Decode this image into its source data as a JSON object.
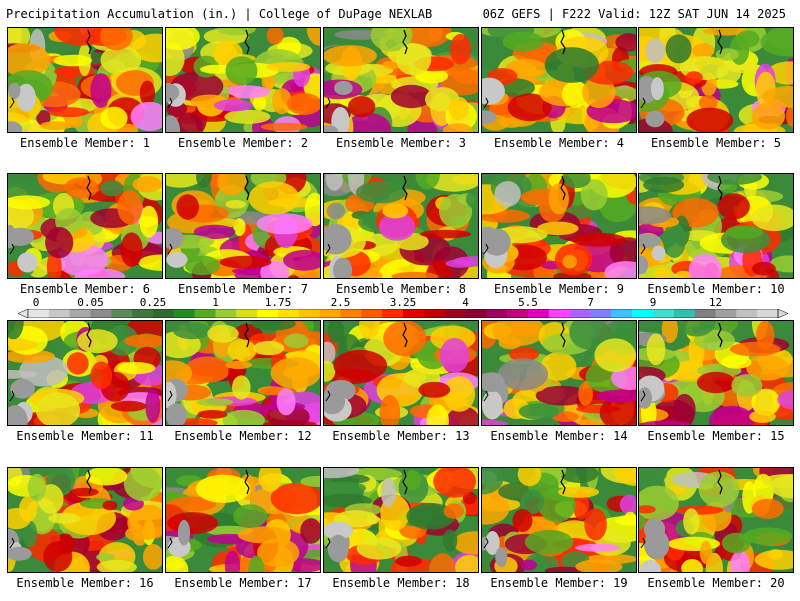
{
  "header": {
    "title_left": "Precipitation Accumulation (in.) | College of DuPage NEXLAB",
    "title_right": "06Z GEFS | F222 Valid: 12Z SAT JUN 14 2025"
  },
  "colorbar": {
    "tick_labels": [
      "0",
      "0.05",
      "0.25",
      "1",
      "1.75",
      "2.5",
      "3.25",
      "4",
      "5.5",
      "7",
      "9",
      "12"
    ],
    "colors": [
      "#e6e6e6",
      "#c8c8c8",
      "#a8a8a8",
      "#8c8c8c",
      "#5a8a5a",
      "#3c783c",
      "#2e6b2e",
      "#228b22",
      "#55aa22",
      "#9acd32",
      "#d8e01e",
      "#ffff00",
      "#ffe000",
      "#ffc200",
      "#ffa500",
      "#ff8000",
      "#ff5a00",
      "#ff2a00",
      "#e00000",
      "#c00000",
      "#a00020",
      "#8b0030",
      "#a00060",
      "#c00080",
      "#e000c0",
      "#ff40ff",
      "#b060ff",
      "#8080ff",
      "#40c0ff",
      "#00ffff",
      "#40e0d0",
      "#30c0b0",
      "#808080",
      "#a0a0a0",
      "#c0c0c0",
      "#d8d8d8"
    ]
  },
  "members": [
    {
      "label": "Ensemble Member: 1",
      "wet": 0.55,
      "seed": 11
    },
    {
      "label": "Ensemble Member: 2",
      "wet": 0.62,
      "seed": 23
    },
    {
      "label": "Ensemble Member: 3",
      "wet": 0.5,
      "seed": 37
    },
    {
      "label": "Ensemble Member: 4",
      "wet": 0.38,
      "seed": 41
    },
    {
      "label": "Ensemble Member: 5",
      "wet": 0.5,
      "seed": 53
    },
    {
      "label": "Ensemble Member: 6",
      "wet": 0.52,
      "seed": 61
    },
    {
      "label": "Ensemble Member: 7",
      "wet": 0.55,
      "seed": 73
    },
    {
      "label": "Ensemble Member: 8",
      "wet": 0.5,
      "seed": 89
    },
    {
      "label": "Ensemble Member: 9",
      "wet": 0.55,
      "seed": 97
    },
    {
      "label": "Ensemble Member: 10",
      "wet": 0.45,
      "seed": 103
    },
    {
      "label": "Ensemble Member: 11",
      "wet": 0.5,
      "seed": 113
    },
    {
      "label": "Ensemble Member: 12",
      "wet": 0.62,
      "seed": 127
    },
    {
      "label": "Ensemble Member: 13",
      "wet": 0.5,
      "seed": 131
    },
    {
      "label": "Ensemble Member: 14",
      "wet": 0.55,
      "seed": 149
    },
    {
      "label": "Ensemble Member: 15",
      "wet": 0.6,
      "seed": 157
    },
    {
      "label": "Ensemble Member: 16",
      "wet": 0.55,
      "seed": 167
    },
    {
      "label": "Ensemble Member: 17",
      "wet": 0.45,
      "seed": 173
    },
    {
      "label": "Ensemble Member: 18",
      "wet": 0.5,
      "seed": 181
    },
    {
      "label": "Ensemble Member: 19",
      "wet": 0.55,
      "seed": 191
    },
    {
      "label": "Ensemble Member: 20",
      "wet": 0.5,
      "seed": 199
    }
  ]
}
